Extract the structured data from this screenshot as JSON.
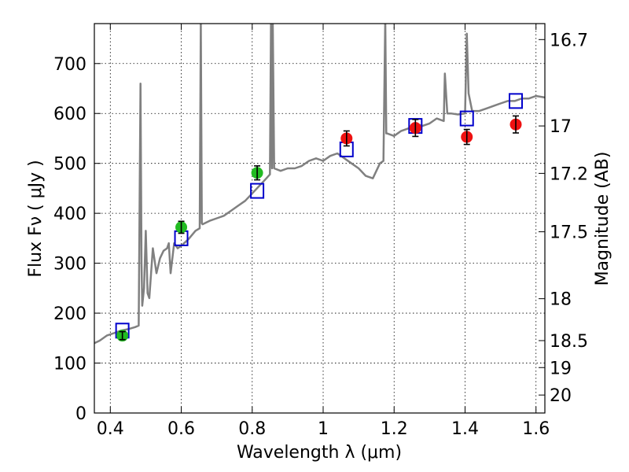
{
  "chart_data": {
    "type": "scatter",
    "xlabel": "Wavelength  λ (μm)",
    "ylabel": "Flux  Fν  ( μJy )",
    "ylabel2": "Magnitude (AB)",
    "xlim": [
      0.355,
      1.625
    ],
    "ylim": [
      0,
      780
    ],
    "grid": true,
    "x_ticks": [
      0.4,
      0.6,
      0.8,
      1.0,
      1.2,
      1.4,
      1.6
    ],
    "x_tick_labels": [
      "0.4",
      "0.6",
      "0.8",
      "1",
      "1.2",
      "1.4",
      "1.6"
    ],
    "y_ticks": [
      0,
      100,
      200,
      300,
      400,
      500,
      600,
      700
    ],
    "y_tick_labels": [
      "0",
      "100",
      "200",
      "300",
      "400",
      "500",
      "600",
      "700"
    ],
    "mag_ticks": [
      {
        "flux": 748,
        "label": "16.7"
      },
      {
        "flux": 575,
        "label": "17"
      },
      {
        "flux": 480,
        "label": "17.2"
      },
      {
        "flux": 363,
        "label": "17.5"
      },
      {
        "flux": 229,
        "label": "18"
      },
      {
        "flux": 145,
        "label": "18.5"
      },
      {
        "flux": 91,
        "label": "19"
      },
      {
        "flux": 36,
        "label": "20"
      }
    ],
    "colors": {
      "spectrum": "#808080",
      "model": "#0000cc",
      "optical": "#22bb22",
      "nir": "#ee1111",
      "errorbar": "#000000"
    },
    "series": [
      {
        "type": "line",
        "values": [
          [
            0.355,
            140
          ],
          [
            0.37,
            145
          ],
          [
            0.39,
            155
          ],
          [
            0.41,
            160
          ],
          [
            0.43,
            165
          ],
          [
            0.45,
            168
          ],
          [
            0.47,
            172
          ],
          [
            0.48,
            175
          ],
          [
            0.485,
            660
          ],
          [
            0.488,
            300
          ],
          [
            0.49,
            215
          ],
          [
            0.495,
            250
          ],
          [
            0.5,
            365
          ],
          [
            0.505,
            240
          ],
          [
            0.51,
            230
          ],
          [
            0.52,
            330
          ],
          [
            0.53,
            280
          ],
          [
            0.54,
            310
          ],
          [
            0.55,
            325
          ],
          [
            0.56,
            330
          ],
          [
            0.565,
            340
          ],
          [
            0.57,
            280
          ],
          [
            0.58,
            340
          ],
          [
            0.59,
            330
          ],
          [
            0.6,
            335
          ],
          [
            0.62,
            348
          ],
          [
            0.64,
            365
          ],
          [
            0.652,
            370
          ],
          [
            0.655,
            790
          ],
          [
            0.658,
            380
          ],
          [
            0.66,
            378
          ],
          [
            0.68,
            385
          ],
          [
            0.7,
            390
          ],
          [
            0.72,
            395
          ],
          [
            0.74,
            405
          ],
          [
            0.76,
            415
          ],
          [
            0.78,
            425
          ],
          [
            0.8,
            440
          ],
          [
            0.82,
            455
          ],
          [
            0.84,
            470
          ],
          [
            0.85,
            478
          ],
          [
            0.853,
            790
          ],
          [
            0.856,
            490
          ],
          [
            0.858,
            785
          ],
          [
            0.862,
            490
          ],
          [
            0.88,
            485
          ],
          [
            0.9,
            490
          ],
          [
            0.92,
            490
          ],
          [
            0.94,
            495
          ],
          [
            0.96,
            505
          ],
          [
            0.98,
            510
          ],
          [
            1.0,
            505
          ],
          [
            1.02,
            515
          ],
          [
            1.04,
            520
          ],
          [
            1.06,
            510
          ],
          [
            1.08,
            500
          ],
          [
            1.1,
            490
          ],
          [
            1.12,
            475
          ],
          [
            1.14,
            470
          ],
          [
            1.16,
            500
          ],
          [
            1.17,
            505
          ],
          [
            1.175,
            790
          ],
          [
            1.178,
            560
          ],
          [
            1.18,
            560
          ],
          [
            1.2,
            555
          ],
          [
            1.22,
            565
          ],
          [
            1.24,
            570
          ],
          [
            1.26,
            580
          ],
          [
            1.28,
            575
          ],
          [
            1.3,
            580
          ],
          [
            1.32,
            590
          ],
          [
            1.34,
            585
          ],
          [
            1.343,
            680
          ],
          [
            1.35,
            600
          ],
          [
            1.36,
            600
          ],
          [
            1.38,
            598
          ],
          [
            1.4,
            600
          ],
          [
            1.405,
            760
          ],
          [
            1.41,
            640
          ],
          [
            1.42,
            605
          ],
          [
            1.44,
            605
          ],
          [
            1.46,
            610
          ],
          [
            1.48,
            615
          ],
          [
            1.5,
            620
          ],
          [
            1.52,
            625
          ],
          [
            1.54,
            625
          ],
          [
            1.56,
            630
          ],
          [
            1.58,
            630
          ],
          [
            1.6,
            635
          ],
          [
            1.625,
            632
          ]
        ]
      },
      {
        "type": "scatter",
        "marker": "square",
        "values": [
          [
            0.434,
            165
          ],
          [
            0.6,
            350
          ],
          [
            0.814,
            445
          ],
          [
            1.066,
            528
          ],
          [
            1.26,
            575
          ],
          [
            1.405,
            590
          ],
          [
            1.543,
            625
          ]
        ]
      },
      {
        "type": "scatter",
        "marker": "circle",
        "color": "optical",
        "values": [
          [
            0.434,
            155
          ],
          [
            0.6,
            372
          ],
          [
            0.814,
            481
          ]
        ],
        "errors": [
          8,
          12,
          14
        ]
      },
      {
        "type": "scatter",
        "marker": "circle",
        "color": "nir",
        "values": [
          [
            1.066,
            550
          ],
          [
            1.26,
            571
          ],
          [
            1.405,
            553
          ],
          [
            1.543,
            578
          ]
        ],
        "errors": [
          15,
          17,
          15,
          17
        ]
      }
    ]
  }
}
